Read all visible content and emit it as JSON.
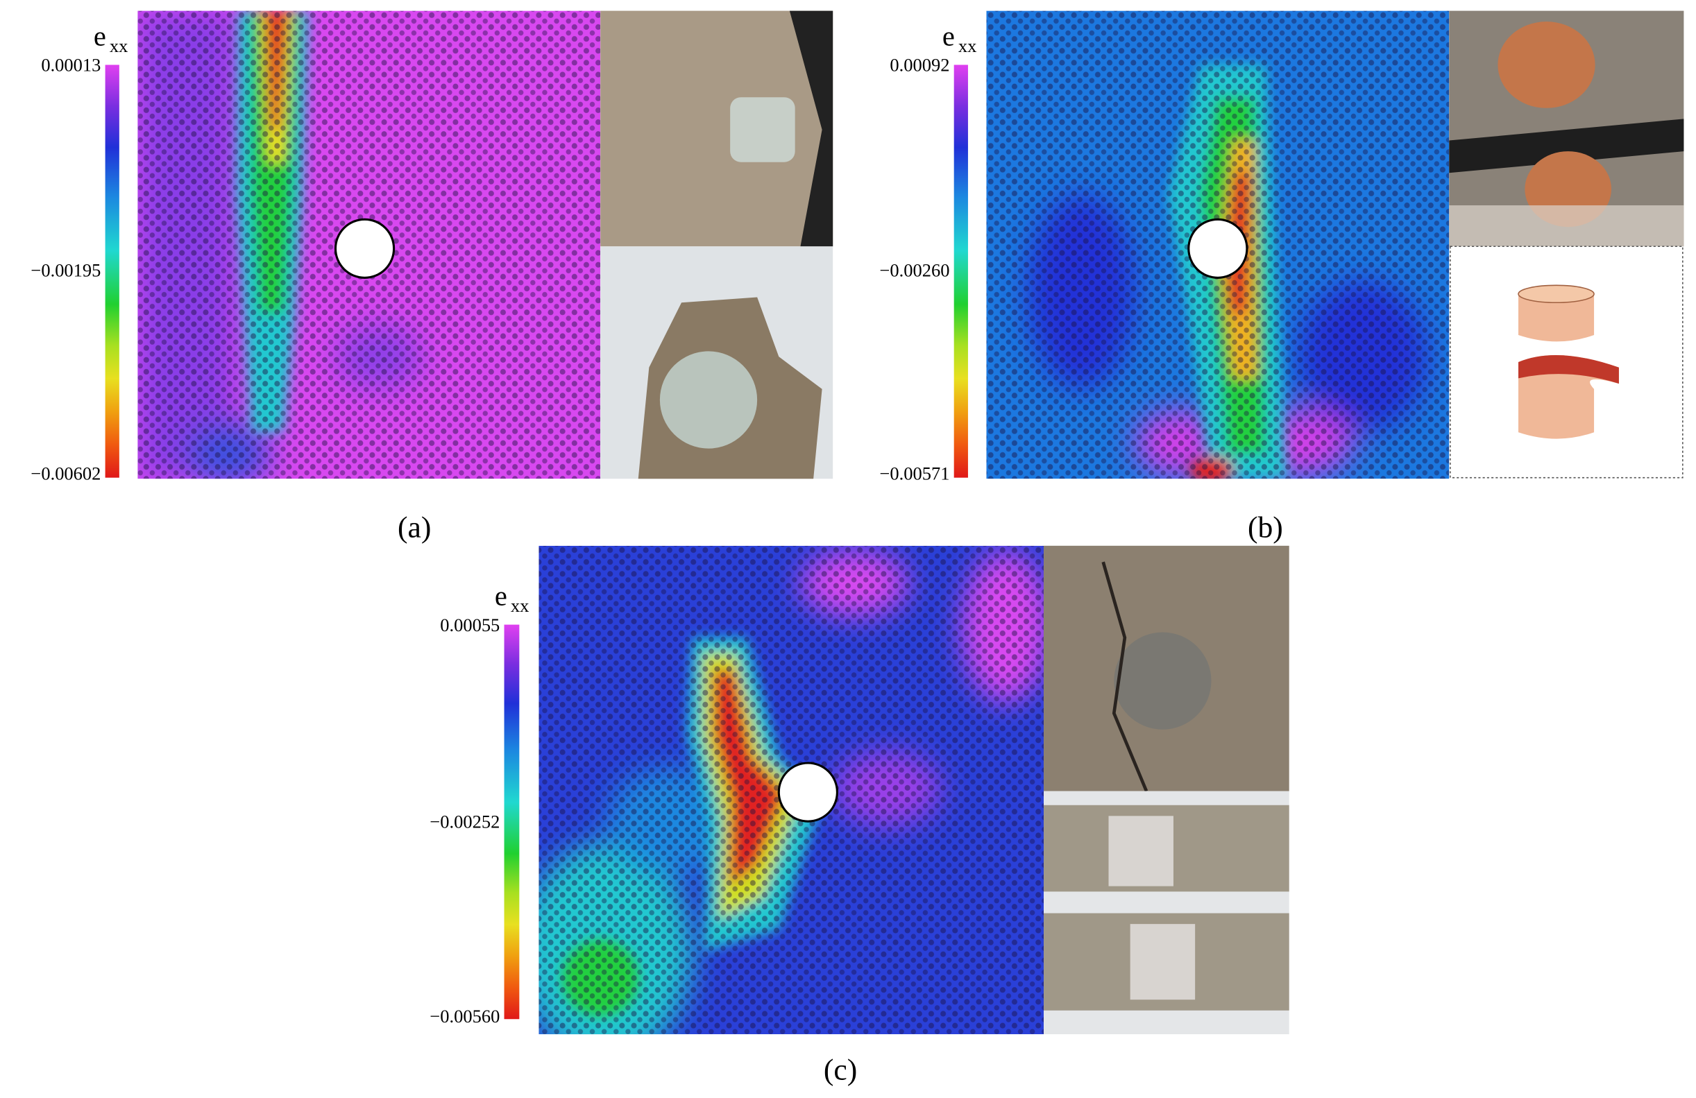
{
  "panels": [
    {
      "label": "(a)",
      "colorbar": {
        "symbol": "e",
        "subscript": "xx",
        "ticks": [
          "0.00013",
          "−0.00195",
          "−0.00602"
        ]
      }
    },
    {
      "label": "(b)",
      "colorbar": {
        "symbol": "e",
        "subscript": "xx",
        "ticks": [
          "0.00092",
          "−0.00260",
          "−0.00571"
        ]
      }
    },
    {
      "label": "(c)",
      "colorbar": {
        "symbol": "e",
        "subscript": "xx",
        "ticks": [
          "0.00055",
          "−0.00252",
          "−0.00560"
        ]
      }
    }
  ]
}
